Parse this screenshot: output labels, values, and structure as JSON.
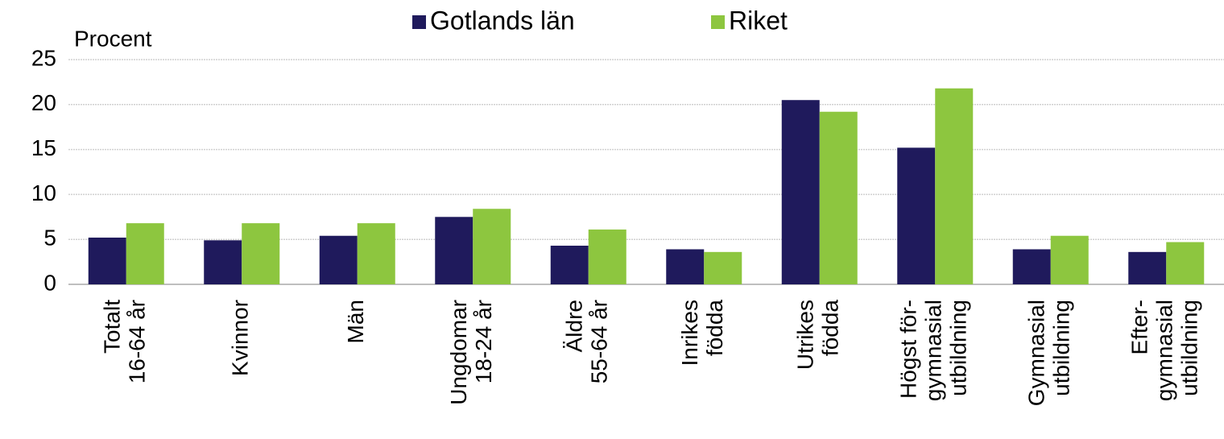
{
  "chart_data": {
    "type": "bar",
    "y_label": "Procent",
    "categories": [
      [
        "Totalt",
        "16-64 år"
      ],
      [
        "Kvinnor"
      ],
      [
        "Män"
      ],
      [
        "Ungdomar",
        "18-24 år"
      ],
      [
        "Äldre",
        "55-64 år"
      ],
      [
        "Inrikes",
        "födda"
      ],
      [
        "Utrikes",
        "födda"
      ],
      [
        "Högst för-",
        "gymnasial",
        "utbildning"
      ],
      [
        "Gymnasial",
        "utbildning"
      ],
      [
        "Efter-",
        "gymnasial",
        "utbildning"
      ]
    ],
    "series": [
      {
        "name": "Gotlands län",
        "color": "#1f1a5c",
        "values": [
          5.2,
          4.9,
          5.4,
          7.5,
          4.3,
          3.9,
          20.5,
          15.2,
          3.9,
          3.6
        ]
      },
      {
        "name": "Riket",
        "color": "#8dc63f",
        "values": [
          6.8,
          6.8,
          6.8,
          8.4,
          6.1,
          3.6,
          19.2,
          21.8,
          5.4,
          4.7
        ]
      }
    ],
    "ylim": [
      0,
      25
    ],
    "yticks": [
      0,
      5,
      10,
      15,
      20,
      25
    ],
    "grid": true,
    "legend": "top"
  }
}
